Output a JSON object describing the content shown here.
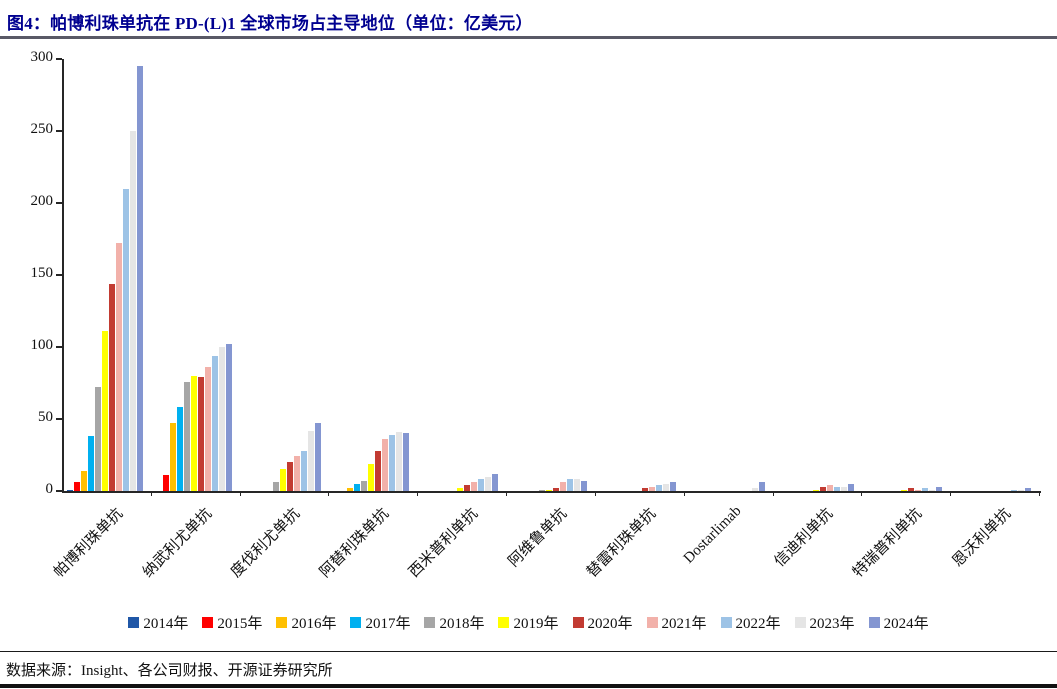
{
  "title": "图4：帕博利珠单抗在 PD-(L)1 全球市场占主导地位（单位：亿美元）",
  "source": "数据来源：Insight、各公司财报、开源证券研究所",
  "chart_data": {
    "type": "bar",
    "title": "帕博利珠单抗在 PD-(L)1 全球市场占主导地位",
    "unit": "亿美元",
    "grid": false,
    "legend_position": "bottom",
    "ylim": [
      0,
      300
    ],
    "yticks": [
      0,
      50,
      100,
      150,
      200,
      250,
      300
    ],
    "categories": [
      "帕博利珠单抗",
      "纳武利尤单抗",
      "度伐利尤单抗",
      "阿替利珠单抗",
      "西米普利单抗",
      "阿维鲁单抗",
      "替雷利珠单抗",
      "Dostarlimab",
      "信迪利单抗",
      "特瑞普利单抗",
      "恩沃利单抗"
    ],
    "series": [
      {
        "name": "2014年",
        "color": "#2057A7",
        "values": [
          0.5,
          0,
          0,
          0,
          0,
          0,
          0,
          0,
          0,
          0,
          0
        ]
      },
      {
        "name": "2015年",
        "color": "#FF0000",
        "values": [
          6,
          11,
          0,
          0,
          0,
          0,
          0,
          0,
          0,
          0,
          0
        ]
      },
      {
        "name": "2016年",
        "color": "#FFC000",
        "values": [
          14,
          47,
          0,
          2,
          0,
          0,
          0,
          0,
          0,
          0,
          0
        ]
      },
      {
        "name": "2017年",
        "color": "#00B0F0",
        "values": [
          38,
          58,
          0,
          5,
          0,
          0,
          0,
          0,
          0,
          0,
          0
        ]
      },
      {
        "name": "2018年",
        "color": "#A6A6A6",
        "values": [
          72,
          76,
          6,
          7,
          0,
          1,
          0,
          0,
          0,
          0,
          0
        ]
      },
      {
        "name": "2019年",
        "color": "#FFFF00",
        "values": [
          111,
          80,
          15,
          19,
          2,
          1,
          0,
          0,
          1,
          1,
          0
        ]
      },
      {
        "name": "2020年",
        "color": "#C23B32",
        "values": [
          144,
          79,
          20,
          28,
          4,
          2,
          2,
          0,
          3,
          2,
          0
        ]
      },
      {
        "name": "2021年",
        "color": "#F2B1AA",
        "values": [
          172,
          86,
          24,
          36,
          6,
          6,
          3,
          0,
          4,
          1,
          0
        ]
      },
      {
        "name": "2022年",
        "color": "#9DC3E6",
        "values": [
          210,
          94,
          28,
          39,
          8,
          8,
          4,
          0,
          3,
          2,
          1
        ]
      },
      {
        "name": "2023年",
        "color": "#E5E5E5",
        "values": [
          250,
          100,
          42,
          41,
          10,
          8,
          5,
          2,
          3,
          1,
          1
        ]
      },
      {
        "name": "2024年",
        "color": "#8496D1",
        "values": [
          295,
          102,
          47,
          40,
          12,
          7,
          6,
          6,
          5,
          3,
          2
        ]
      }
    ]
  }
}
